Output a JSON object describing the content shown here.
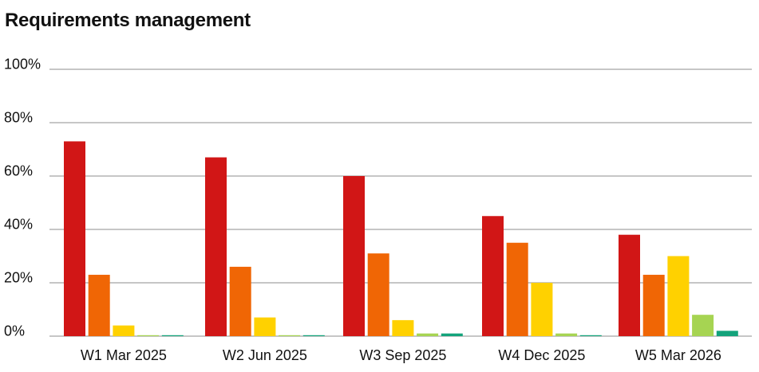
{
  "chart_data": {
    "type": "bar",
    "title": "Requirements management",
    "xlabel": "",
    "ylabel": "",
    "ylim": [
      0,
      100
    ],
    "y_ticks": [
      "0%",
      "20%",
      "40%",
      "60%",
      "80%",
      "100%"
    ],
    "grid": true,
    "legend": "none",
    "categories": [
      "W1 Mar 2025",
      "W2 Jun 2025",
      "W3 Sep 2025",
      "W4 Dec 2025",
      "W5 Mar 2026"
    ],
    "series": [
      {
        "color": "#d11616",
        "values": [
          73,
          67,
          60,
          45,
          38
        ]
      },
      {
        "color": "#f06605",
        "values": [
          23,
          26,
          31,
          35,
          23
        ]
      },
      {
        "color": "#ffd100",
        "values": [
          4,
          7,
          6,
          20,
          30
        ]
      },
      {
        "color": "#a6d452",
        "values": [
          0.3,
          0.3,
          1,
          1,
          8
        ]
      },
      {
        "color": "#13a37b",
        "values": [
          0.3,
          0.3,
          1,
          0.3,
          2
        ]
      }
    ]
  }
}
